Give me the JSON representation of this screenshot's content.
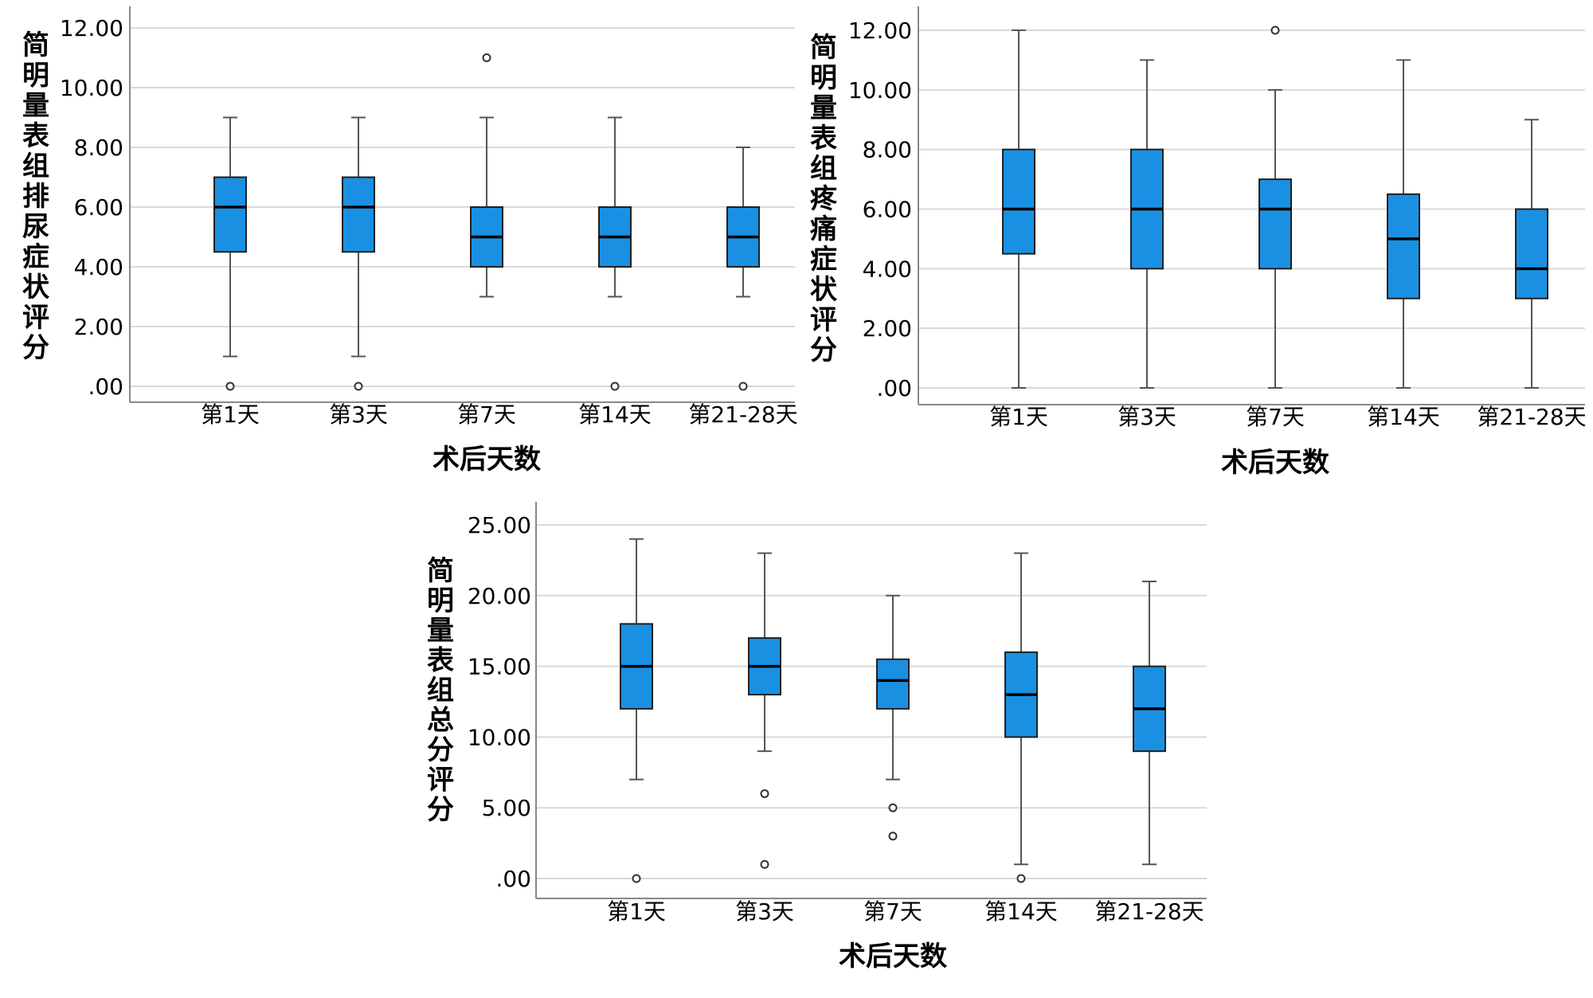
{
  "colors": {
    "box_fill": "#1a90e3",
    "box_stroke": "#202020",
    "grid": "#d9d9d9",
    "axis": "#888888",
    "text": "#000000",
    "background": "#ffffff"
  },
  "chart_data": [
    {
      "type": "boxplot",
      "ylabel": "简明量表组排尿症状评分",
      "xlabel": "术后天数",
      "categories": [
        "第1天",
        "第3天",
        "第7天",
        "第14天",
        "第21-28天"
      ],
      "yticks": [
        ".00",
        "2.00",
        "4.00",
        "6.00",
        "8.00",
        "10.00",
        "12.00"
      ],
      "ylim": [
        0,
        12
      ],
      "grid": true,
      "boxes": [
        {
          "min": 1,
          "q1": 4.5,
          "median": 6,
          "q3": 7,
          "max": 9,
          "outliers": [
            0
          ]
        },
        {
          "min": 1,
          "q1": 4.5,
          "median": 6,
          "q3": 7,
          "max": 9,
          "outliers": [
            0
          ]
        },
        {
          "min": 3,
          "q1": 4,
          "median": 5,
          "q3": 6,
          "max": 9,
          "outliers": [
            11
          ]
        },
        {
          "min": 3,
          "q1": 4,
          "median": 5,
          "q3": 6,
          "max": 9,
          "outliers": [
            0
          ]
        },
        {
          "min": 3,
          "q1": 4,
          "median": 5,
          "q3": 6,
          "max": 8,
          "outliers": [
            0
          ]
        }
      ]
    },
    {
      "type": "boxplot",
      "ylabel": "简明量表组疼痛症状评分",
      "xlabel": "术后天数",
      "categories": [
        "第1天",
        "第3天",
        "第7天",
        "第14天",
        "第21-28天"
      ],
      "yticks": [
        ".00",
        "2.00",
        "4.00",
        "6.00",
        "8.00",
        "10.00",
        "12.00"
      ],
      "ylim": [
        0,
        12
      ],
      "grid": true,
      "boxes": [
        {
          "min": 0,
          "q1": 4.5,
          "median": 6,
          "q3": 8,
          "max": 12,
          "outliers": []
        },
        {
          "min": 0,
          "q1": 4,
          "median": 6,
          "q3": 8,
          "max": 11,
          "outliers": []
        },
        {
          "min": 0,
          "q1": 4,
          "median": 6,
          "q3": 7,
          "max": 10,
          "outliers": [
            12
          ]
        },
        {
          "min": 0,
          "q1": 3,
          "median": 5,
          "q3": 6.5,
          "max": 11,
          "outliers": []
        },
        {
          "min": 0,
          "q1": 3,
          "median": 4,
          "q3": 6,
          "max": 9,
          "outliers": []
        }
      ]
    },
    {
      "type": "boxplot",
      "ylabel": "简明量表组总分评分",
      "xlabel": "术后天数",
      "categories": [
        "第1天",
        "第3天",
        "第7天",
        "第14天",
        "第21-28天"
      ],
      "yticks": [
        ".00",
        "5.00",
        "10.00",
        "15.00",
        "20.00",
        "25.00"
      ],
      "ylim": [
        0,
        25
      ],
      "grid": true,
      "boxes": [
        {
          "min": 7,
          "q1": 12,
          "median": 15,
          "q3": 18,
          "max": 24,
          "outliers": [
            0
          ]
        },
        {
          "min": 9,
          "q1": 13,
          "median": 15,
          "q3": 17,
          "max": 23,
          "outliers": [
            6,
            1
          ]
        },
        {
          "min": 7,
          "q1": 12,
          "median": 14,
          "q3": 15.5,
          "max": 20,
          "outliers": [
            5,
            3
          ]
        },
        {
          "min": 1,
          "q1": 10,
          "median": 13,
          "q3": 16,
          "max": 23,
          "outliers": [
            0
          ]
        },
        {
          "min": 1,
          "q1": 9,
          "median": 12,
          "q3": 15,
          "max": 21,
          "outliers": []
        }
      ]
    }
  ]
}
